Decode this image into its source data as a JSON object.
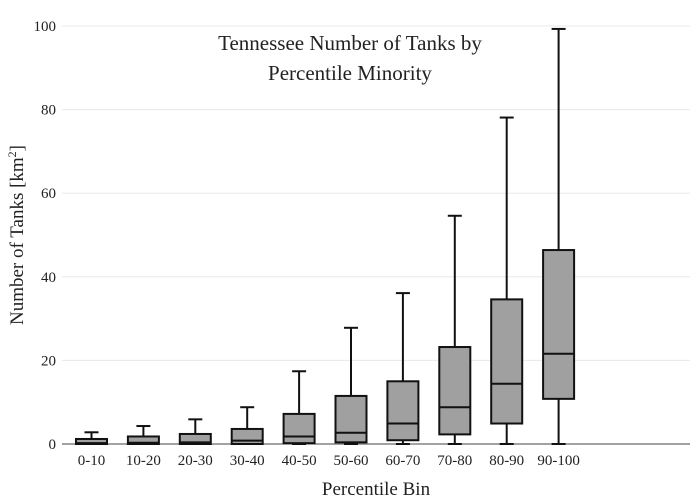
{
  "chart_data": {
    "type": "box",
    "title_lines": [
      "Tennessee Number of Tanks by",
      "Percentile Minority"
    ],
    "xlabel": "Percentile Bin",
    "ylabel_main": "Number of Tanks  [km",
    "ylabel_sup": "2",
    "ylabel_tail": "]",
    "ylim": [
      0,
      100
    ],
    "yticks": [
      0,
      20,
      40,
      60,
      80,
      100
    ],
    "grid": true,
    "box_color": "#a0a0a0",
    "line_color": "#111111",
    "categories": [
      "0-10",
      "10-20",
      "20-30",
      "30-40",
      "40-50",
      "50-60",
      "60-70",
      "70-80",
      "80-90",
      "90-100"
    ],
    "boxes": [
      {
        "min": 0,
        "q1": 0,
        "median": 0.2,
        "q3": 1.2,
        "max": 2.8
      },
      {
        "min": 0,
        "q1": 0,
        "median": 0.3,
        "q3": 1.8,
        "max": 4.3
      },
      {
        "min": 0,
        "q1": 0,
        "median": 0.4,
        "q3": 2.4,
        "max": 5.9
      },
      {
        "min": 0,
        "q1": 0,
        "median": 0.8,
        "q3": 3.6,
        "max": 8.8
      },
      {
        "min": 0,
        "q1": 0.2,
        "median": 1.8,
        "q3": 7.2,
        "max": 17.4
      },
      {
        "min": 0,
        "q1": 0.4,
        "median": 2.7,
        "q3": 11.5,
        "max": 27.8
      },
      {
        "min": 0,
        "q1": 0.9,
        "median": 4.9,
        "q3": 15.0,
        "max": 36.1
      },
      {
        "min": 0,
        "q1": 2.3,
        "median": 8.8,
        "q3": 23.2,
        "max": 54.6
      },
      {
        "min": 0,
        "q1": 4.9,
        "median": 14.4,
        "q3": 34.6,
        "max": 78.1
      },
      {
        "min": 0,
        "q1": 10.8,
        "median": 21.6,
        "q3": 46.4,
        "max": 99.3
      }
    ]
  }
}
